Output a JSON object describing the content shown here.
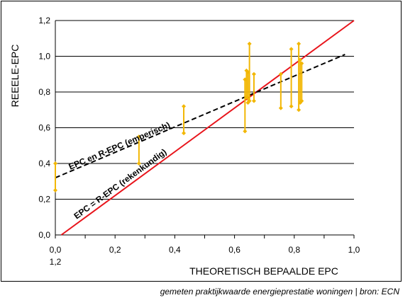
{
  "chart_data": {
    "type": "scatter",
    "title": "",
    "xlabel": "THEORETISCH BEPAALDE EPC",
    "ylabel": "REEELE-EPC",
    "xlim": [
      0,
      1.0
    ],
    "ylim": [
      0,
      1.2
    ],
    "x_ticks": [
      "0,0",
      "0,2",
      "0,4",
      "0,6",
      "0,8",
      "1,0"
    ],
    "x_tick_extra": "1,2",
    "y_ticks": [
      "0,0",
      "0,2",
      "0,4",
      "0,6",
      "0,8",
      "1,0",
      "1,2"
    ],
    "grid": "horizontal",
    "lines": [
      {
        "label": "EPC = R-EPC (rekenkundig)",
        "style": "solid",
        "color": "#e8141b",
        "from": [
          0.02,
          0.0
        ],
        "to": [
          1.0,
          1.2
        ]
      },
      {
        "label": "EPC en R-EPC (emperisch)",
        "style": "dashed",
        "color": "#000000",
        "from": [
          0.0,
          0.32
        ],
        "to": [
          0.97,
          1.01
        ]
      }
    ],
    "ranges": [
      {
        "x": 0.0,
        "low": 0.25,
        "high": 0.4
      },
      {
        "x": 0.28,
        "low": 0.4,
        "high": 0.55
      },
      {
        "x": 0.43,
        "low": 0.57,
        "high": 0.72
      },
      {
        "x": 0.635,
        "low": 0.58,
        "high": 0.87
      },
      {
        "x": 0.64,
        "low": 0.77,
        "high": 0.92
      },
      {
        "x": 0.645,
        "low": 0.74,
        "high": 0.91
      },
      {
        "x": 0.65,
        "low": 0.75,
        "high": 1.07
      },
      {
        "x": 0.665,
        "low": 0.75,
        "high": 0.9
      },
      {
        "x": 0.755,
        "low": 0.71,
        "high": 0.9
      },
      {
        "x": 0.79,
        "low": 0.72,
        "high": 1.04
      },
      {
        "x": 0.815,
        "low": 0.7,
        "high": 1.07
      },
      {
        "x": 0.82,
        "low": 0.74,
        "high": 0.98
      },
      {
        "x": 0.825,
        "low": 0.75,
        "high": 0.96
      }
    ],
    "range_color": "#f2b705"
  },
  "source_note": "gemeten praktijkwaarde energieprestatie woningen | bron: ECN"
}
